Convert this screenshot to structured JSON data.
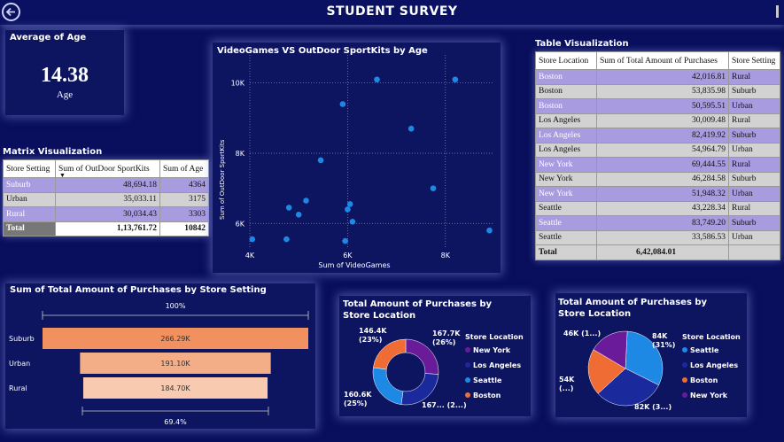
{
  "header": {
    "title": "STUDENT SURVEY"
  },
  "kpi": {
    "title": "Average of Age",
    "value": "14.38",
    "label": "Age"
  },
  "matrix": {
    "title": "Matrix Visualization",
    "columns": [
      "Store Setting",
      "Sum of OutDoor SportKits",
      "Sum of Age"
    ],
    "rows": [
      {
        "setting": "Suburb",
        "sportkits": "48,694.18",
        "age": "4364"
      },
      {
        "setting": "Urban",
        "sportkits": "35,033.11",
        "age": "3175"
      },
      {
        "setting": "Rural",
        "sportkits": "30,034.43",
        "age": "3303"
      }
    ],
    "total": {
      "setting": "Total",
      "sportkits": "1,13,761.72",
      "age": "10842"
    }
  },
  "table": {
    "title": "Table Visualization",
    "columns": [
      "Store Location",
      "Sum of Total Amount of Purchases",
      "Store Setting"
    ],
    "rows": [
      {
        "loc": "Boston",
        "amt": "42,016.81",
        "setting": "Rural"
      },
      {
        "loc": "Boston",
        "amt": "53,835.98",
        "setting": "Suburb"
      },
      {
        "loc": "Boston",
        "amt": "50,595.51",
        "setting": "Urban"
      },
      {
        "loc": "Los Angeles",
        "amt": "30,009.48",
        "setting": "Rural"
      },
      {
        "loc": "Los Angeles",
        "amt": "82,419.92",
        "setting": "Suburb"
      },
      {
        "loc": "Los Angeles",
        "amt": "54,964.79",
        "setting": "Urban"
      },
      {
        "loc": "New York",
        "amt": "69,444.55",
        "setting": "Rural"
      },
      {
        "loc": "New York",
        "amt": "46,284.58",
        "setting": "Suburb"
      },
      {
        "loc": "New York",
        "amt": "51,948.32",
        "setting": "Urban"
      },
      {
        "loc": "Seattle",
        "amt": "43,228.34",
        "setting": "Rural"
      },
      {
        "loc": "Seattle",
        "amt": "83,749.20",
        "setting": "Suburb"
      },
      {
        "loc": "Seattle",
        "amt": "33,586.53",
        "setting": "Urban"
      }
    ],
    "total": {
      "loc": "Total",
      "amt": "6,42,084.01",
      "setting": ""
    }
  },
  "chart_data": [
    {
      "type": "scatter",
      "title": "VideoGames VS OutDoor SportKits by Age",
      "xlabel": "Sum of VideoGames",
      "ylabel": "Sum of OutDoor SportKits",
      "x_ticks": [
        "4K",
        "6K",
        "8K"
      ],
      "y_ticks": [
        "10K",
        "8K",
        "6K"
      ],
      "xlim": [
        4000,
        9000
      ],
      "ylim": [
        5300,
        10800
      ],
      "grid": true,
      "point_color": "#1e88e5",
      "points": [
        {
          "x": 4050,
          "y": 5550
        },
        {
          "x": 4750,
          "y": 5550
        },
        {
          "x": 4800,
          "y": 6450
        },
        {
          "x": 5000,
          "y": 6250
        },
        {
          "x": 5150,
          "y": 6650
        },
        {
          "x": 5450,
          "y": 7800
        },
        {
          "x": 5900,
          "y": 9400
        },
        {
          "x": 5950,
          "y": 5500
        },
        {
          "x": 6000,
          "y": 6400
        },
        {
          "x": 6050,
          "y": 6550
        },
        {
          "x": 6100,
          "y": 6050
        },
        {
          "x": 6600,
          "y": 10100
        },
        {
          "x": 7300,
          "y": 8700
        },
        {
          "x": 7750,
          "y": 7000
        },
        {
          "x": 8200,
          "y": 10100
        },
        {
          "x": 8900,
          "y": 5800
        }
      ]
    },
    {
      "type": "bar",
      "title": "Sum of Total Amount of Purchases by Store Setting",
      "categories": [
        "Suburb",
        "Urban",
        "Rural"
      ],
      "values": [
        266290,
        191100,
        184700
      ],
      "value_labels": [
        "266.29K",
        "191.10K",
        "184.70K"
      ],
      "colors": [
        "#f0915f",
        "#f4ae87",
        "#f8cbb0"
      ],
      "top_label": "100%",
      "bottom_label": "69.4%"
    },
    {
      "type": "pie",
      "title": "Total Amount of Purchases by Store Location",
      "donut": true,
      "legend_title": "Store Location",
      "legend_position": "right",
      "categories": [
        "New York",
        "Los Angeles",
        "Seattle",
        "Boston"
      ],
      "values": [
        167700,
        167400,
        160600,
        146400
      ],
      "colors": [
        "#6a1b9a",
        "#1a2a9c",
        "#1e88e5",
        "#ef6c34"
      ],
      "slice_labels": [
        {
          "line1": "167.7K",
          "line2": "(26%)"
        },
        {
          "line1": "167... (2...)",
          "line2": ""
        },
        {
          "line1": "160.6K",
          "line2": "(25%)"
        },
        {
          "line1": "146.4K",
          "line2": "(23%)"
        }
      ]
    },
    {
      "type": "pie",
      "title": "Total Amount of Purchases by Store Location",
      "donut": false,
      "legend_title": "Store Location",
      "legend_position": "right",
      "categories": [
        "Seattle",
        "Los Angeles",
        "Boston",
        "New York"
      ],
      "values": [
        84000,
        82000,
        54000,
        46000
      ],
      "colors": [
        "#1e88e5",
        "#1a2a9c",
        "#ef6c34",
        "#6a1b9a"
      ],
      "slice_labels": [
        {
          "line1": "84K",
          "line2": "(31%)"
        },
        {
          "line1": "82K (3...)",
          "line2": ""
        },
        {
          "line1": "54K",
          "line2": "(...)"
        },
        {
          "line1": "46K (1...)",
          "line2": ""
        }
      ]
    }
  ]
}
